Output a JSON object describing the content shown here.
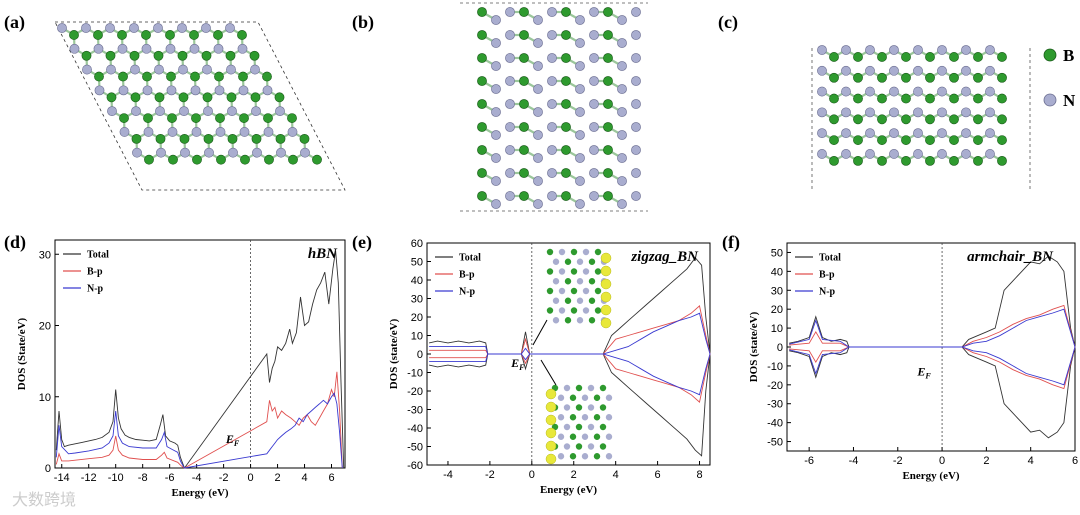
{
  "panels_top": [
    {
      "label": "(a)"
    },
    {
      "label": "(b)"
    },
    {
      "label": "(c)"
    }
  ],
  "atom_legend": [
    {
      "label": "B",
      "color": "#2e9a2e"
    },
    {
      "label": "N",
      "color": "#a9adcf"
    }
  ],
  "colors": {
    "total": "#333333",
    "bp": "#e0504f",
    "np": "#3a3ad0",
    "boron": "#2e9a2e",
    "nitrogen": "#a9adcf",
    "charge": "#e8e83a"
  },
  "watermark": "大数跨境",
  "chart_data": [
    {
      "panel": "(d)",
      "type": "line",
      "annotation": "hBN",
      "ef_label": "E",
      "ef_sub": "F",
      "xlabel": "Energy (eV)",
      "ylabel": "DOS (State/eV)",
      "xlim": [
        -14.5,
        7
      ],
      "ylim": [
        0,
        32
      ],
      "xticks": [
        -14,
        -12,
        -10,
        -8,
        -6,
        -4,
        -2,
        0,
        2,
        4,
        6
      ],
      "yticks": [
        0,
        10,
        20,
        30
      ],
      "fermi": 0,
      "legend": [
        "Total",
        "B-p",
        "N-p"
      ],
      "series": [
        {
          "name": "Total",
          "x": [
            -14.4,
            -14.2,
            -14.0,
            -13.8,
            -13.5,
            -13.0,
            -12.5,
            -12.0,
            -11.5,
            -11.0,
            -10.5,
            -10.2,
            -10.0,
            -9.8,
            -9.6,
            -9.3,
            -9.0,
            -8.5,
            -8.0,
            -7.5,
            -7.0,
            -6.7,
            -6.5,
            -6.3,
            -6.0,
            -5.6,
            -5.4,
            -5.2,
            -5.0,
            -4.9,
            1.2,
            1.4,
            1.6,
            1.8,
            2.0,
            2.3,
            2.6,
            2.9,
            3.1,
            3.4,
            3.7,
            4.0,
            4.3,
            4.6,
            4.9,
            5.2,
            5.5,
            5.8,
            6.1,
            6.3,
            6.5,
            6.7,
            6.9
          ],
          "y": [
            2.5,
            8.0,
            4.0,
            3.0,
            3.2,
            3.4,
            3.6,
            3.8,
            4.0,
            4.3,
            5.0,
            6.5,
            11.0,
            7.0,
            5.5,
            4.6,
            4.3,
            4.0,
            3.9,
            3.8,
            4.0,
            6.0,
            7.5,
            4.5,
            3.8,
            3.5,
            3.2,
            1.5,
            0.5,
            0,
            16.0,
            12.0,
            14.0,
            15.0,
            17.0,
            16.5,
            17.5,
            19.5,
            17.5,
            19.0,
            24.0,
            20.0,
            20.5,
            23.0,
            25.0,
            26.0,
            27.5,
            23.0,
            28.0,
            30.5,
            26.0,
            12.0,
            0
          ]
        },
        {
          "name": "B-p",
          "x": [
            -14.4,
            -14.2,
            -14.0,
            -13.5,
            -13.0,
            -12.0,
            -11.0,
            -10.5,
            -10.2,
            -10.0,
            -9.8,
            -9.5,
            -9.0,
            -8.0,
            -7.0,
            -6.6,
            -6.4,
            -6.2,
            -5.8,
            -5.4,
            -5.2,
            -5.0,
            -4.9,
            1.2,
            1.4,
            1.6,
            1.8,
            2.0,
            2.3,
            2.6,
            3.0,
            3.3,
            3.6,
            3.9,
            4.2,
            4.5,
            4.8,
            5.1,
            5.4,
            5.7,
            6.0,
            6.2,
            6.4,
            6.6,
            6.8
          ],
          "y": [
            0.5,
            2.0,
            1.0,
            1.0,
            1.1,
            1.3,
            1.5,
            1.8,
            2.5,
            4.5,
            2.5,
            1.8,
            1.4,
            1.2,
            1.2,
            1.8,
            2.2,
            1.4,
            1.1,
            0.8,
            0.4,
            0.1,
            0,
            6.5,
            9.5,
            8.0,
            8.5,
            7.0,
            8.0,
            7.5,
            7.0,
            6.5,
            6.0,
            7.0,
            7.5,
            6.5,
            6.0,
            7.0,
            8.0,
            9.0,
            11.0,
            10.0,
            13.5,
            8.0,
            0
          ]
        },
        {
          "name": "N-p",
          "x": [
            -14.4,
            -14.2,
            -14.0,
            -13.5,
            -13.0,
            -12.0,
            -11.0,
            -10.5,
            -10.2,
            -10.0,
            -9.8,
            -9.5,
            -9.0,
            -8.0,
            -7.0,
            -6.6,
            -6.4,
            -6.2,
            -5.8,
            -5.4,
            -5.2,
            -5.0,
            -4.9,
            1.2,
            1.4,
            1.6,
            1.8,
            2.0,
            2.3,
            2.6,
            3.0,
            3.3,
            3.6,
            3.9,
            4.2,
            4.5,
            4.8,
            5.1,
            5.4,
            5.7,
            6.0,
            6.2,
            6.4,
            6.6,
            6.8
          ],
          "y": [
            1.5,
            6.0,
            3.0,
            2.0,
            2.1,
            2.4,
            2.8,
            3.5,
            4.5,
            8.0,
            4.5,
            3.5,
            3.0,
            2.8,
            2.8,
            4.0,
            5.0,
            3.0,
            2.6,
            2.2,
            1.0,
            0.3,
            0,
            2.0,
            2.5,
            3.0,
            3.5,
            4.0,
            4.5,
            5.0,
            5.5,
            6.0,
            7.0,
            6.5,
            7.5,
            8.0,
            8.5,
            9.0,
            9.5,
            9.0,
            10.0,
            10.5,
            9.0,
            5.0,
            0
          ]
        }
      ]
    },
    {
      "panel": "(e)",
      "type": "line",
      "annotation": "zigzag_BN",
      "ef_label": "E",
      "ef_sub": "F",
      "xlabel": "Energy (eV)",
      "ylabel": "DOS (state/eV)",
      "xlim": [
        -5,
        8.5
      ],
      "ylim": [
        -60,
        60
      ],
      "xticks": [
        -4,
        -2,
        0,
        2,
        4,
        6,
        8
      ],
      "yticks": [
        -60,
        -50,
        -40,
        -30,
        -20,
        -10,
        0,
        10,
        20,
        30,
        40,
        50,
        60
      ],
      "fermi": 0,
      "legend": [
        "Total",
        "B-p",
        "N-p"
      ],
      "series": [
        {
          "name": "Total",
          "x": [
            -4.9,
            -4.5,
            -4.0,
            -3.5,
            -3.0,
            -2.5,
            -2.2,
            -2.1,
            -0.5,
            -0.3,
            -0.1,
            3.4,
            3.8,
            4.2,
            4.6,
            5.0,
            5.4,
            5.8,
            6.2,
            6.6,
            7.0,
            7.4,
            7.8,
            8.1,
            8.3,
            8.5
          ],
          "y": [
            6,
            7,
            6,
            7,
            6,
            7,
            6,
            0,
            0,
            12,
            0,
            0,
            10,
            14,
            18,
            22,
            26,
            30,
            34,
            38,
            42,
            46,
            52,
            48,
            20,
            0
          ]
        },
        {
          "name": "Total-down",
          "x": [
            -4.9,
            -4.5,
            -4.0,
            -3.5,
            -3.0,
            -2.5,
            -2.2,
            -2.1,
            -0.5,
            -0.3,
            -0.1,
            3.4,
            3.8,
            4.2,
            4.6,
            5.0,
            5.4,
            5.8,
            6.2,
            6.6,
            7.0,
            7.4,
            7.8,
            8.1,
            8.3,
            8.5
          ],
          "y": [
            -6,
            -7,
            -6,
            -7,
            -6,
            -7,
            -6,
            0,
            0,
            -8,
            0,
            0,
            -10,
            -14,
            -18,
            -22,
            -26,
            -30,
            -34,
            -38,
            -42,
            -46,
            -52,
            -55,
            -20,
            0
          ]
        },
        {
          "name": "B-p",
          "x": [
            -4.9,
            -4.0,
            -3.0,
            -2.2,
            -2.1,
            -0.5,
            -0.3,
            -0.1,
            3.4,
            4.0,
            4.6,
            5.2,
            5.8,
            6.4,
            7.0,
            7.6,
            8.0,
            8.3,
            8.5
          ],
          "y": [
            2,
            2,
            2,
            2,
            0,
            0,
            8,
            0,
            0,
            8,
            10,
            12,
            14,
            16,
            18,
            22,
            26,
            10,
            0
          ]
        },
        {
          "name": "B-p-down",
          "x": [
            -4.9,
            -4.0,
            -3.0,
            -2.2,
            -2.1,
            -0.5,
            -0.3,
            -0.1,
            3.4,
            4.0,
            4.6,
            5.2,
            5.8,
            6.4,
            7.0,
            7.6,
            8.0,
            8.3,
            8.5
          ],
          "y": [
            -2,
            -2,
            -2,
            -2,
            0,
            0,
            -5,
            0,
            0,
            -8,
            -10,
            -12,
            -14,
            -16,
            -18,
            -22,
            -26,
            -10,
            0
          ]
        },
        {
          "name": "N-p",
          "x": [
            -4.9,
            -4.0,
            -3.0,
            -2.2,
            -2.1,
            -0.5,
            -0.3,
            -0.1,
            3.4,
            4.0,
            4.6,
            5.2,
            5.8,
            6.4,
            7.0,
            7.6,
            8.0,
            8.3,
            8.5
          ],
          "y": [
            4,
            4,
            4,
            4,
            0,
            0,
            3,
            0,
            0,
            2,
            4,
            8,
            12,
            15,
            18,
            20,
            22,
            8,
            0
          ]
        },
        {
          "name": "N-p-down",
          "x": [
            -4.9,
            -4.0,
            -3.0,
            -2.2,
            -2.1,
            -0.5,
            -0.3,
            -0.1,
            3.4,
            4.0,
            4.6,
            5.2,
            5.8,
            6.4,
            7.0,
            7.6,
            8.0,
            8.3,
            8.5
          ],
          "y": [
            -4,
            -4,
            -4,
            -4,
            0,
            0,
            -3,
            0,
            0,
            -2,
            -4,
            -8,
            -12,
            -15,
            -18,
            -20,
            -22,
            -8,
            0
          ]
        }
      ]
    },
    {
      "panel": "(f)",
      "type": "line",
      "annotation": "armchair_BN",
      "ef_label": "E",
      "ef_sub": "F",
      "xlabel": "Energy (eV)",
      "ylabel": "DOS (state/eV)",
      "xlim": [
        -7,
        6
      ],
      "ylim": [
        -55,
        55
      ],
      "xticks": [
        -6,
        -4,
        -2,
        0,
        2,
        4,
        6
      ],
      "yticks": [
        -50,
        -40,
        -30,
        -20,
        -10,
        0,
        10,
        20,
        30,
        40,
        50
      ],
      "fermi": 0,
      "legend": [
        "Total",
        "B-p",
        "N-p"
      ],
      "series": [
        {
          "name": "Total",
          "x": [
            -6.9,
            -6.5,
            -6.0,
            -5.7,
            -5.4,
            -5.0,
            -4.6,
            -4.3,
            -4.2,
            0.9,
            1.2,
            1.6,
            2.0,
            2.4,
            2.8,
            3.2,
            3.6,
            4.0,
            4.4,
            4.8,
            5.2,
            5.5,
            5.8,
            6.0
          ],
          "y": [
            2,
            3,
            5,
            16,
            5,
            3,
            4,
            3,
            0,
            0,
            4,
            6,
            8,
            10,
            30,
            35,
            40,
            45,
            44,
            48,
            45,
            40,
            10,
            0
          ]
        },
        {
          "name": "Total-down",
          "x": [
            -6.9,
            -6.5,
            -6.0,
            -5.7,
            -5.4,
            -5.0,
            -4.6,
            -4.3,
            -4.2,
            0.9,
            1.2,
            1.6,
            2.0,
            2.4,
            2.8,
            3.2,
            3.6,
            4.0,
            4.4,
            4.8,
            5.2,
            5.5,
            5.8,
            6.0
          ],
          "y": [
            -2,
            -3,
            -5,
            -16,
            -5,
            -3,
            -4,
            -3,
            0,
            0,
            -4,
            -6,
            -8,
            -10,
            -30,
            -35,
            -40,
            -45,
            -44,
            -48,
            -45,
            -40,
            -10,
            0
          ]
        },
        {
          "name": "B-p",
          "x": [
            -6.9,
            -6.0,
            -5.7,
            -5.4,
            -4.6,
            -4.2,
            0.9,
            1.4,
            2.0,
            2.6,
            3.2,
            3.8,
            4.4,
            5.0,
            5.5,
            6.0
          ],
          "y": [
            1,
            2,
            8,
            2,
            2,
            0,
            0,
            3,
            5,
            8,
            12,
            15,
            17,
            20,
            22,
            0
          ]
        },
        {
          "name": "B-p-down",
          "x": [
            -6.9,
            -6.0,
            -5.7,
            -5.4,
            -4.6,
            -4.2,
            0.9,
            1.4,
            2.0,
            2.6,
            3.2,
            3.8,
            4.4,
            5.0,
            5.5,
            6.0
          ],
          "y": [
            -1,
            -2,
            -8,
            -2,
            -2,
            0,
            0,
            -3,
            -5,
            -8,
            -12,
            -15,
            -17,
            -20,
            -22,
            0
          ]
        },
        {
          "name": "N-p",
          "x": [
            -6.9,
            -6.0,
            -5.7,
            -5.4,
            -4.6,
            -4.2,
            0.9,
            1.4,
            2.0,
            2.6,
            3.2,
            3.8,
            4.4,
            5.0,
            5.5,
            6.0
          ],
          "y": [
            1.5,
            4,
            14,
            4,
            3,
            0,
            0,
            2,
            3,
            6,
            10,
            14,
            16,
            18,
            20,
            0
          ]
        },
        {
          "name": "N-p-down",
          "x": [
            -6.9,
            -6.0,
            -5.7,
            -5.4,
            -4.6,
            -4.2,
            0.9,
            1.4,
            2.0,
            2.6,
            3.2,
            3.8,
            4.4,
            5.0,
            5.5,
            6.0
          ],
          "y": [
            -1.5,
            -4,
            -14,
            -4,
            -3,
            0,
            0,
            -2,
            -3,
            -6,
            -10,
            -14,
            -16,
            -18,
            -20,
            0
          ]
        }
      ]
    }
  ]
}
